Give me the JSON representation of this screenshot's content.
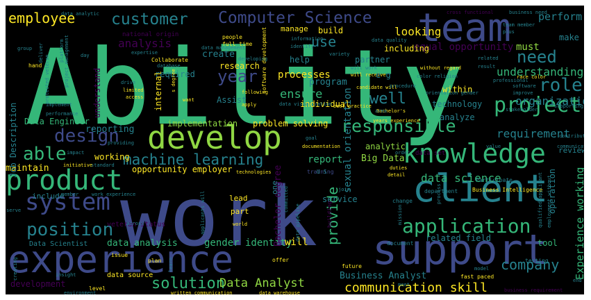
{
  "word_cloud": {
    "background": "#000000",
    "palette": {
      "purple": "#440154",
      "indigo": "#3e4a89",
      "teal": "#26828e",
      "green": "#35b779",
      "lime": "#90d743",
      "yellow": "#fde725"
    },
    "words": [
      {
        "text": "Ability",
        "color": "#35b779"
      },
      {
        "text": "work",
        "color": "#3e4a89"
      },
      {
        "text": "team",
        "color": "#3e4a89"
      },
      {
        "text": "experience",
        "color": "#3e4a89"
      },
      {
        "text": "support",
        "color": "#3e4a89"
      },
      {
        "text": "develop",
        "color": "#90d743"
      },
      {
        "text": "client",
        "color": "#26828e"
      },
      {
        "text": "knowledge",
        "color": "#35b779"
      },
      {
        "text": "product",
        "color": "#35b779"
      },
      {
        "text": "system",
        "color": "#3e4a89"
      },
      {
        "text": "application",
        "color": "#35b779"
      },
      {
        "text": "position",
        "color": "#26828e"
      },
      {
        "text": "project",
        "color": "#35b779"
      },
      {
        "text": "responsible",
        "color": "#35b779"
      },
      {
        "text": "design",
        "color": "#3e4a89"
      },
      {
        "text": "Computer Science",
        "color": "#3e4a89"
      },
      {
        "text": "customer",
        "color": "#26828e"
      },
      {
        "text": "employee",
        "color": "#fde725"
      },
      {
        "text": "role",
        "color": "#26828e"
      },
      {
        "text": "need",
        "color": "#26828e"
      },
      {
        "text": "year",
        "color": "#3e4a89"
      },
      {
        "text": "well",
        "color": "#26828e"
      },
      {
        "text": "provide",
        "color": "#35b779"
      },
      {
        "text": "company",
        "color": "#26828e"
      },
      {
        "text": "solution",
        "color": "#35b779"
      },
      {
        "text": "able",
        "color": "#35b779"
      },
      {
        "text": "machine learning",
        "color": "#26828e"
      },
      {
        "text": "communication skill",
        "color": "#fde725"
      },
      {
        "text": "Data Analyst",
        "color": "#90d743"
      },
      {
        "text": "requirement",
        "color": "#26828e"
      },
      {
        "text": "organization",
        "color": "#26828e"
      },
      {
        "text": "understanding",
        "color": "#35b779"
      },
      {
        "text": "ensure",
        "color": "#35b779"
      },
      {
        "text": "processes",
        "color": "#fde725"
      },
      {
        "text": "analysis",
        "color": "#440154"
      },
      {
        "text": "use",
        "color": "#26828e"
      },
      {
        "text": "looking",
        "color": "#fde725"
      },
      {
        "text": "perform",
        "color": "#26828e"
      },
      {
        "text": "equal opportunity",
        "color": "#440154"
      },
      {
        "text": "must",
        "color": "#90d743"
      },
      {
        "text": "data science",
        "color": "#35b779"
      },
      {
        "text": "Experience working",
        "color": "#35b779"
      },
      {
        "text": "sexual orientation",
        "color": "#26828e"
      },
      {
        "text": "gender identity",
        "color": "#35b779"
      },
      {
        "text": "data analysis",
        "color": "#35b779"
      },
      {
        "text": "Business Analyst",
        "color": "#26828e"
      },
      {
        "text": "related field",
        "color": "#26828e"
      },
      {
        "text": "Bachelor degree",
        "color": "#440154"
      },
      {
        "text": "report",
        "color": "#35b779"
      },
      {
        "text": "Big Data",
        "color": "#90d743"
      },
      {
        "text": "analytic",
        "color": "#90d743"
      },
      {
        "text": "implementation",
        "color": "#90d743"
      },
      {
        "text": "problem solving",
        "color": "#fde725"
      },
      {
        "text": "reporting",
        "color": "#26828e"
      },
      {
        "text": "working",
        "color": "#fde725"
      },
      {
        "text": "maintain",
        "color": "#fde725"
      },
      {
        "text": "opportunity employer",
        "color": "#fde725"
      },
      {
        "text": "include",
        "color": "#26828e"
      },
      {
        "text": "Data Engineer",
        "color": "#35b779"
      },
      {
        "text": "Job Description",
        "color": "#26828e"
      },
      {
        "text": "understand",
        "color": "#440154"
      },
      {
        "text": "required",
        "color": "#26828e"
      },
      {
        "text": "research",
        "color": "#fde725"
      },
      {
        "text": "program",
        "color": "#26828e"
      },
      {
        "text": "Assist",
        "color": "#26828e"
      },
      {
        "text": "individual",
        "color": "#fde725"
      },
      {
        "text": "technology",
        "color": "#26828e"
      },
      {
        "text": "within",
        "color": "#fde725"
      },
      {
        "text": "analyze",
        "color": "#26828e"
      },
      {
        "text": "help",
        "color": "#26828e"
      },
      {
        "text": "partner",
        "color": "#26828e"
      },
      {
        "text": "including",
        "color": "#fde725"
      },
      {
        "text": "create",
        "color": "#26828e"
      },
      {
        "text": "build",
        "color": "#fde725"
      },
      {
        "text": "manage",
        "color": "#fde725"
      },
      {
        "text": "make",
        "color": "#26828e"
      },
      {
        "text": "data set",
        "color": "#440154"
      },
      {
        "text": "data source",
        "color": "#fde725"
      },
      {
        "text": "lead",
        "color": "#fde725"
      },
      {
        "text": "part",
        "color": "#fde725"
      },
      {
        "text": "tool",
        "color": "#35b779"
      },
      {
        "text": "will",
        "color": "#fde725"
      },
      {
        "text": "service",
        "color": "#26828e"
      },
      {
        "text": "building",
        "color": "#440154"
      },
      {
        "text": "veteran status",
        "color": "#440154"
      },
      {
        "text": "Data Scientist",
        "color": "#26828e"
      },
      {
        "text": "development",
        "color": "#440154"
      },
      {
        "text": "review",
        "color": "#26828e"
      },
      {
        "text": "operation",
        "color": "#26828e"
      },
      {
        "text": "Participate",
        "color": "#26828e"
      },
      {
        "text": "Business Intelligence",
        "color": "#fde725"
      },
      {
        "text": "data analytic",
        "color": "#26828e"
      },
      {
        "text": "national origin",
        "color": "#440154"
      },
      {
        "text": "data management",
        "color": "#26828e"
      },
      {
        "text": "cross functional",
        "color": "#440154"
      },
      {
        "text": "business need",
        "color": "#26828e"
      },
      {
        "text": "team member",
        "color": "#26828e"
      },
      {
        "text": "plus",
        "color": "#26828e"
      },
      {
        "text": "people",
        "color": "#fde725"
      },
      {
        "text": "full time",
        "color": "#fde725"
      },
      {
        "text": "information",
        "color": "#26828e"
      },
      {
        "text": "data quality",
        "color": "#26828e"
      },
      {
        "text": "platform",
        "color": "#26828e"
      },
      {
        "text": "software development",
        "color": "#fde725"
      },
      {
        "text": "data visualization",
        "color": "#26828e"
      },
      {
        "text": "best practice",
        "color": "#fde725"
      },
      {
        "text": "Bachelor's",
        "color": "#fde725"
      },
      {
        "text": "years experience",
        "color": "#fde725"
      },
      {
        "text": "documentation",
        "color": "#fde725"
      },
      {
        "text": "goal",
        "color": "#26828e"
      },
      {
        "text": "join",
        "color": "#26828e"
      },
      {
        "text": "order",
        "color": "#26828e"
      },
      {
        "text": "standard",
        "color": "#26828e"
      },
      {
        "text": "initiative",
        "color": "#fde725"
      },
      {
        "text": "impact",
        "color": "#26828e"
      },
      {
        "text": "technologies",
        "color": "#fde725"
      },
      {
        "text": "training",
        "color": "#3e4a89"
      },
      {
        "text": "detail",
        "color": "#fde725"
      },
      {
        "text": "duties",
        "color": "#fde725"
      },
      {
        "text": "department",
        "color": "#26828e"
      },
      {
        "text": "change",
        "color": "#26828e"
      },
      {
        "text": "process",
        "color": "#26828e"
      },
      {
        "text": "qualified applicant",
        "color": "#26828e"
      },
      {
        "text": "employment without",
        "color": "#26828e"
      },
      {
        "text": "contribute",
        "color": "#26828e"
      },
      {
        "text": "without regard",
        "color": "#fde725"
      },
      {
        "text": "candidate will",
        "color": "#fde725"
      },
      {
        "text": "color religion",
        "color": "#26828e"
      },
      {
        "text": "race color",
        "color": "#fde725"
      },
      {
        "text": "orientation gender",
        "color": "#26828e"
      },
      {
        "text": "area",
        "color": "#26828e"
      },
      {
        "text": "procedure",
        "color": "#26828e"
      },
      {
        "text": "variety",
        "color": "#26828e"
      },
      {
        "text": "will work",
        "color": "#26828e"
      },
      {
        "text": "will receive",
        "color": "#fde725"
      },
      {
        "text": "related",
        "color": "#26828e"
      },
      {
        "text": "result",
        "color": "#26828e"
      },
      {
        "text": "software",
        "color": "#26828e"
      },
      {
        "text": "improve",
        "color": "#26828e"
      },
      {
        "text": "professional",
        "color": "#26828e"
      },
      {
        "text": "stakeholder",
        "color": "#26828e"
      },
      {
        "text": "supporting",
        "color": "#26828e"
      },
      {
        "text": "communicate",
        "color": "#26828e"
      },
      {
        "text": "value",
        "color": "#26828e"
      },
      {
        "text": "group",
        "color": "#26828e"
      },
      {
        "text": "hand",
        "color": "#fde725"
      },
      {
        "text": "deliver",
        "color": "#26828e"
      },
      {
        "text": "expertise",
        "color": "#26828e"
      },
      {
        "text": "Collaborate",
        "color": "#fde725"
      },
      {
        "text": "database",
        "color": "#26828e"
      },
      {
        "text": "drive",
        "color": "#26828e"
      },
      {
        "text": "limited",
        "color": "#fde725"
      },
      {
        "text": "access",
        "color": "#fde725"
      },
      {
        "text": "implement",
        "color": "#26828e"
      },
      {
        "text": "performance",
        "color": "#26828e"
      },
      {
        "text": "providing",
        "color": "#26828e"
      },
      {
        "text": "s degree",
        "color": "#fde725"
      },
      {
        "text": "want",
        "color": "#fde725"
      },
      {
        "text": "apply",
        "color": "#fde725"
      },
      {
        "text": "following",
        "color": "#fde725"
      },
      {
        "text": "developing",
        "color": "#26828e"
      },
      {
        "text": "day",
        "color": "#26828e"
      },
      {
        "text": "project management",
        "color": "#26828e"
      },
      {
        "text": "protected veteran",
        "color": "#26828e"
      },
      {
        "text": "world",
        "color": "#fde725"
      },
      {
        "text": "across",
        "color": "#26828e"
      },
      {
        "text": "member",
        "color": "#26828e"
      },
      {
        "text": "work experience",
        "color": "#26828e"
      },
      {
        "text": "committed",
        "color": "#26828e"
      },
      {
        "text": "data pipeline",
        "color": "#26828e"
      },
      {
        "text": "applicants will",
        "color": "#26828e"
      },
      {
        "text": "mission",
        "color": "#26828e"
      },
      {
        "text": "serve",
        "color": "#26828e"
      },
      {
        "text": "issue",
        "color": "#fde725"
      },
      {
        "text": "plan",
        "color": "#fde725"
      },
      {
        "text": "creating",
        "color": "#26828e"
      },
      {
        "text": "insight",
        "color": "#26828e"
      },
      {
        "text": "learn",
        "color": "#26828e"
      },
      {
        "text": "offer",
        "color": "#fde725"
      },
      {
        "text": "future",
        "color": "#fde725"
      },
      {
        "text": "document",
        "color": "#26828e"
      },
      {
        "text": "model",
        "color": "#26828e"
      },
      {
        "text": "fast paced",
        "color": "#fde725"
      },
      {
        "text": "testing",
        "color": "#26828e"
      },
      {
        "text": "end",
        "color": "#26828e"
      },
      {
        "text": "level",
        "color": "#fde725"
      },
      {
        "text": "data warehouse",
        "color": "#fde725"
      },
      {
        "text": "business requirement",
        "color": "#440154"
      },
      {
        "text": "environment",
        "color": "#26828e"
      },
      {
        "text": "written communication",
        "color": "#fde725"
      },
      {
        "text": "meet",
        "color": "#26828e"
      },
      {
        "text": "identify",
        "color": "#26828e"
      },
      {
        "text": "e g",
        "color": "#26828e"
      },
      {
        "text": "U S",
        "color": "#26828e"
      },
      {
        "text": "one",
        "color": "#26828e"
      },
      {
        "text": "internal",
        "color": "#fde725"
      }
    ]
  }
}
